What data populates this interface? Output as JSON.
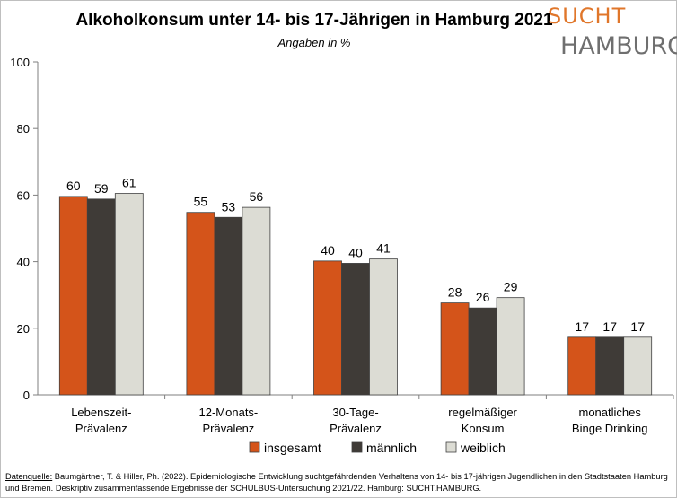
{
  "title": "Alkoholkonsum unter 14- bis 17-Jährigen in Hamburg 2021",
  "subtitle": "Angaben in %",
  "logo": {
    "line1": "SUCHT",
    "line2": "HAMBURG"
  },
  "source": {
    "label": "Datenquelle:",
    "text": " Baumgärtner, T. & Hiller, Ph. (2022). Epidemiologische Entwicklung suchtgefährdenden Verhaltens von 14- bis 17-jährigen Jugendlichen in den Stadtstaaten Hamburg und Bremen. Deskriptiv zusammenfassende Ergebnisse der SCHULBUS-Untersuchung 2021/22. Hamburg: SUCHT.HAMBURG."
  },
  "chart_data": {
    "type": "bar",
    "title": "Alkoholkonsum unter 14- bis 17-Jährigen in Hamburg 2021",
    "subtitle": "Angaben in %",
    "categories": [
      [
        "Lebenszeit-",
        "Prävalenz"
      ],
      [
        "12-Monats-",
        "Prävalenz"
      ],
      [
        "30-Tage-",
        "Prävalenz"
      ],
      [
        "regelmäßiger",
        "Konsum"
      ],
      [
        "monatliches",
        "Binge Drinking"
      ]
    ],
    "series": [
      {
        "name": "insgesamt",
        "color": "#d4541a",
        "values": [
          60,
          55,
          40,
          28,
          17
        ]
      },
      {
        "name": "männlich",
        "color": "#3f3b37",
        "values": [
          59,
          53,
          40,
          26,
          17
        ]
      },
      {
        "name": "weiblich",
        "color": "#dcdcd4",
        "values": [
          61,
          56,
          41,
          29,
          17
        ]
      }
    ],
    "bar_values_precise": [
      [
        59.6,
        54.8,
        40.2,
        27.6,
        17.3
      ],
      [
        58.8,
        53.3,
        39.5,
        26.1,
        17.3
      ],
      [
        60.5,
        56.3,
        40.8,
        29.2,
        17.3
      ]
    ],
    "ylim": [
      0,
      100
    ],
    "yticks": [
      0,
      20,
      40,
      60,
      80,
      100
    ],
    "grid": false,
    "legend": "bottom"
  }
}
